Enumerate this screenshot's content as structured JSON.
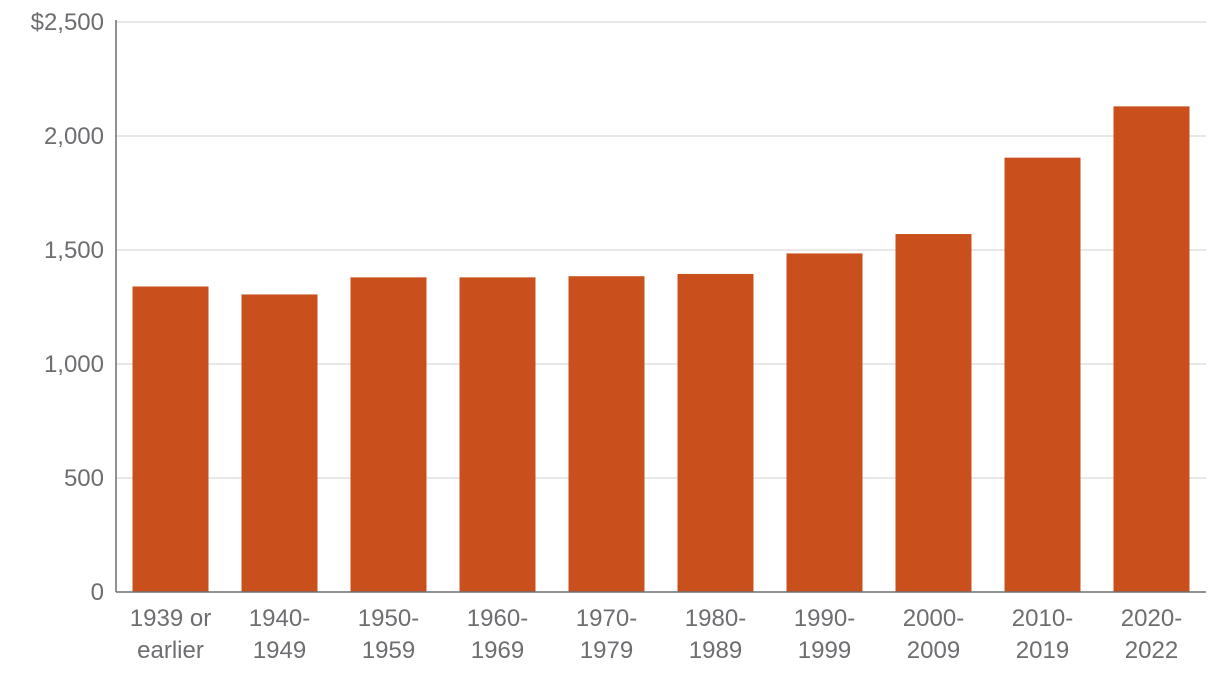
{
  "chart_data": {
    "type": "bar",
    "title": "",
    "xlabel": "",
    "ylabel": "",
    "categories": [
      [
        "1939 or",
        "earlier"
      ],
      [
        "1940-",
        "1949"
      ],
      [
        "1950-",
        "1959"
      ],
      [
        "1960-",
        "1969"
      ],
      [
        "1970-",
        "1979"
      ],
      [
        "1980-",
        "1989"
      ],
      [
        "1990-",
        "1999"
      ],
      [
        "2000-",
        "2009"
      ],
      [
        "2010-",
        "2019"
      ],
      [
        "2020-",
        "2022"
      ]
    ],
    "values": [
      1340,
      1305,
      1380,
      1380,
      1385,
      1395,
      1485,
      1570,
      1905,
      2130
    ],
    "ylim": [
      0,
      2500
    ],
    "yticks": [
      0,
      500,
      1000,
      1500,
      2000,
      2500
    ],
    "ytick_labels": [
      "0",
      "500",
      "1,000",
      "1,500",
      "2,000",
      "$2,500"
    ],
    "grid": true,
    "legend": "none",
    "colors": {
      "bar": "#c9501c",
      "axis": "#6d6e71",
      "grid": "#e1e1e1",
      "text": "#6d6e71"
    }
  }
}
